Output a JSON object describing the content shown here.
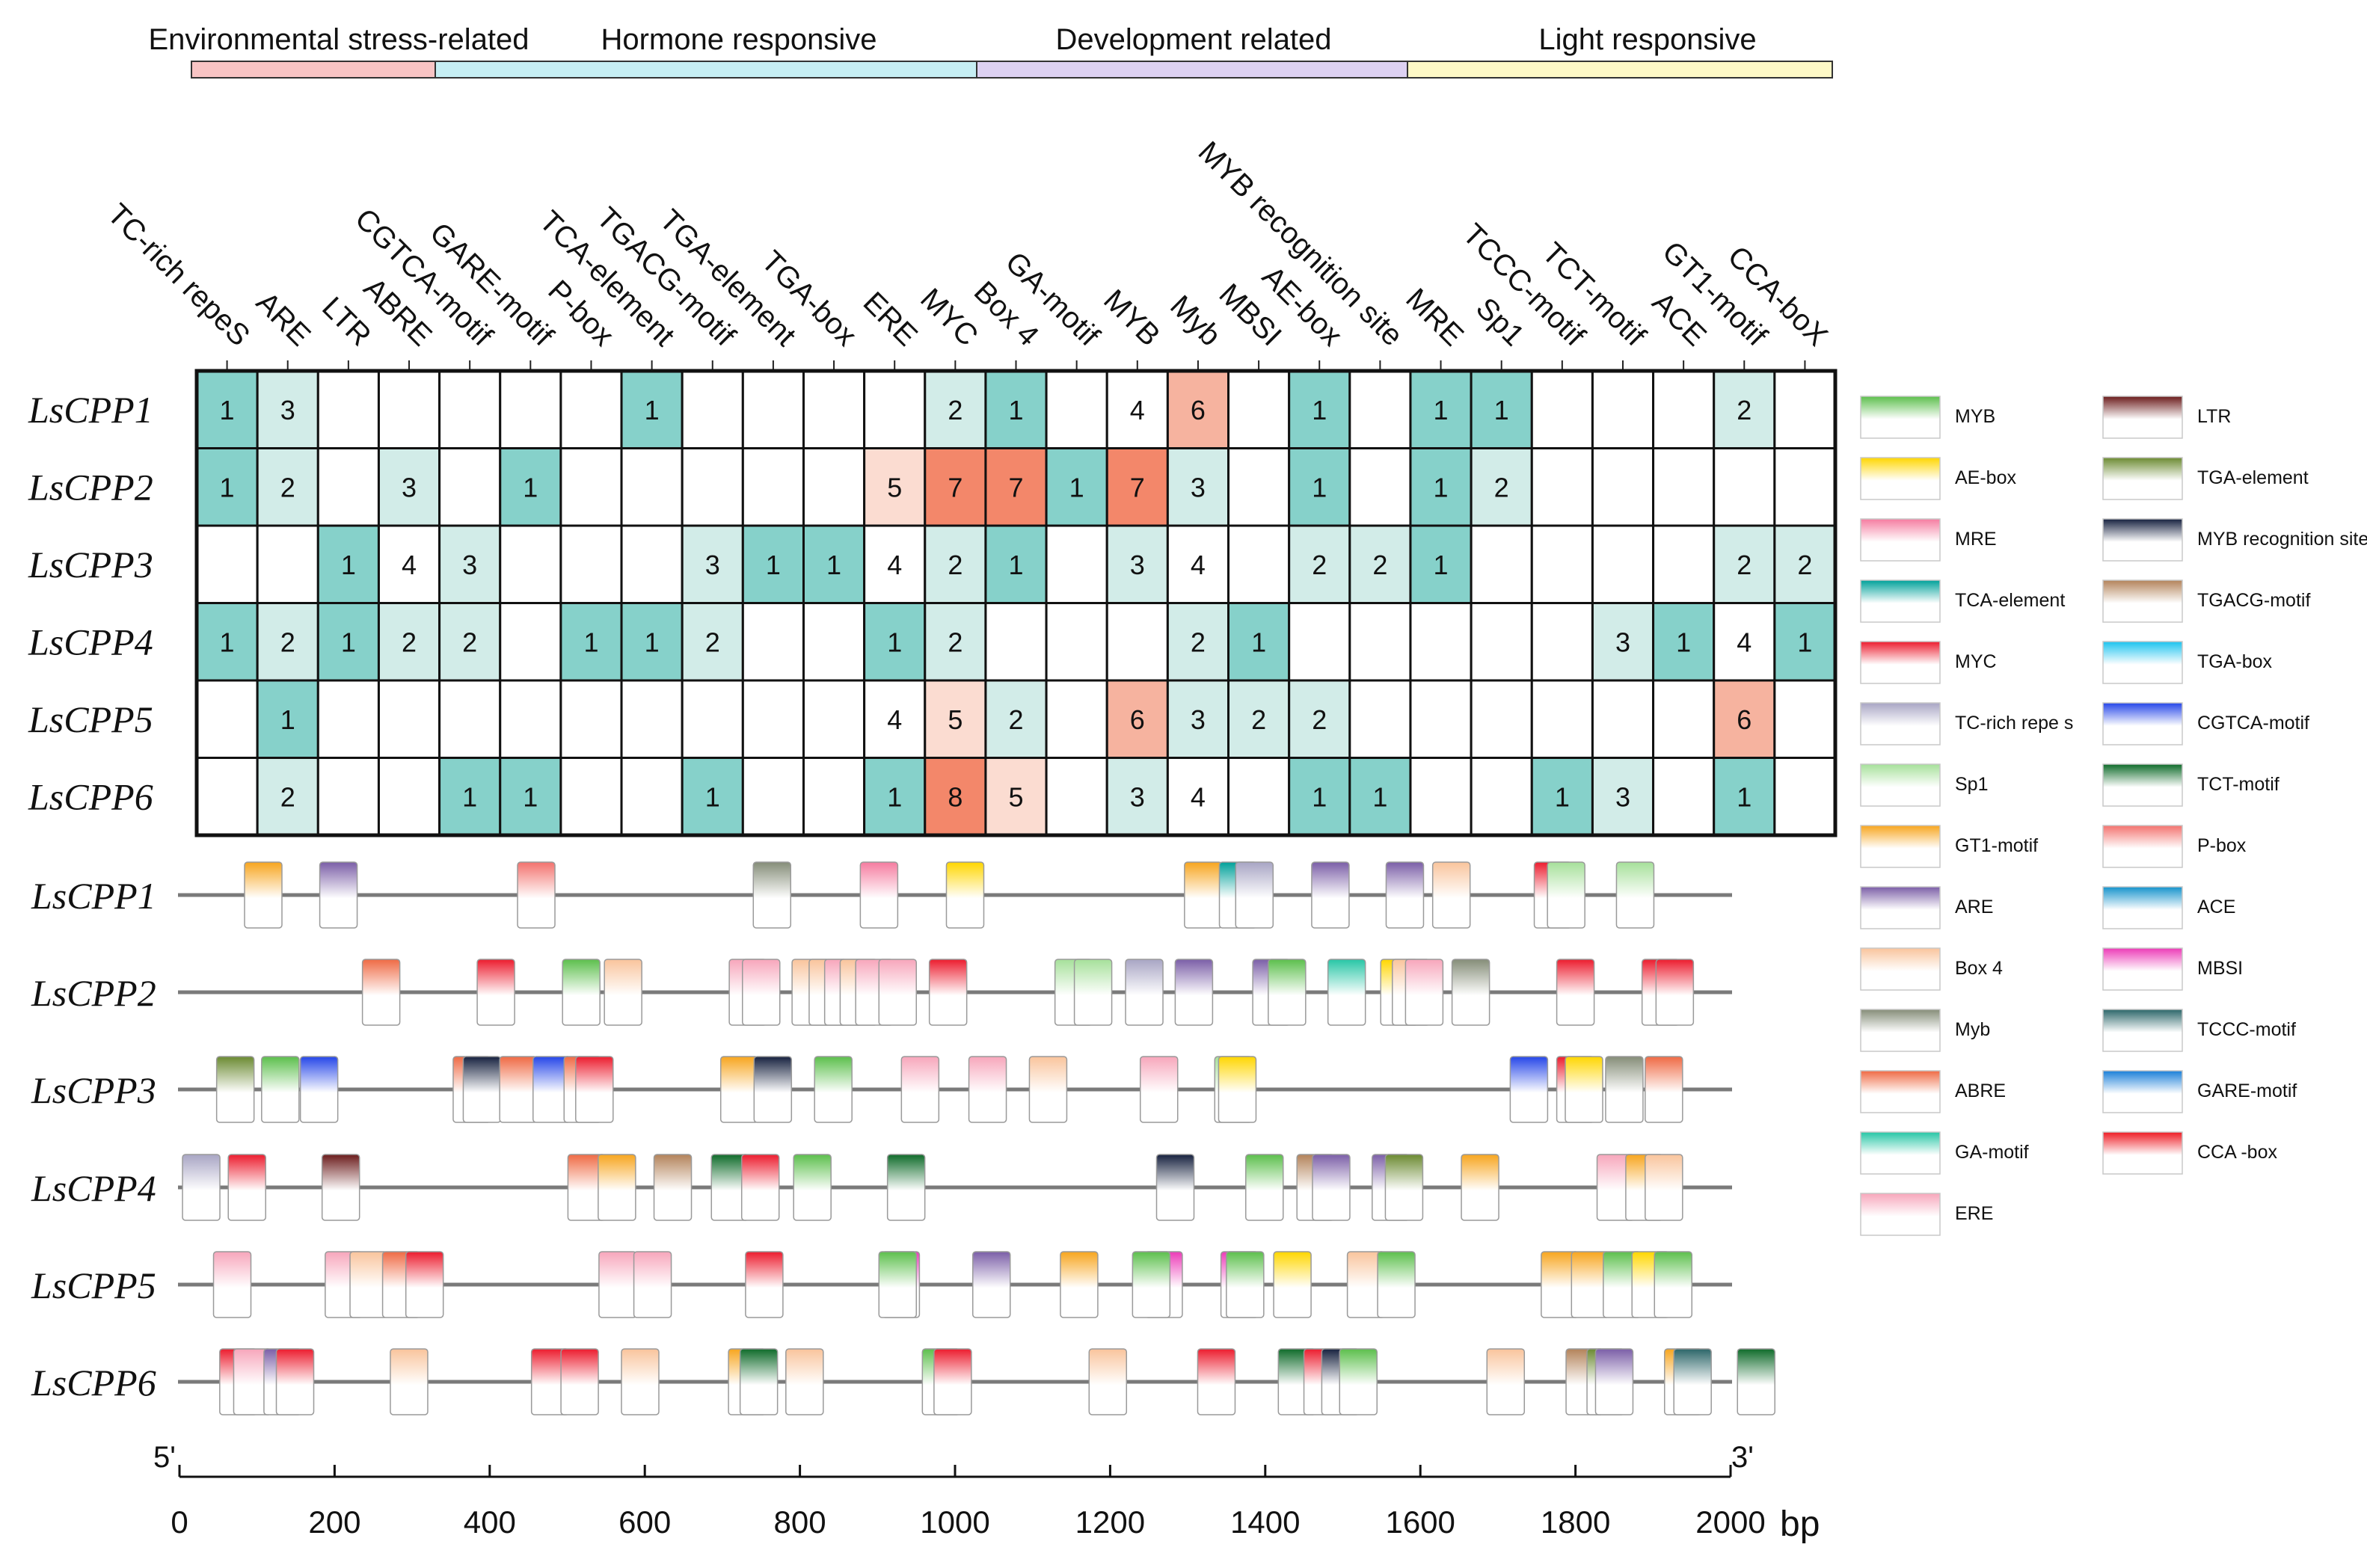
{
  "categories": [
    {
      "label": "Environmental stress-related",
      "color": "#f8c4c4"
    },
    {
      "label": "Hormone responsive",
      "color": "#c6eef3"
    },
    {
      "label": "Development related",
      "color": "#ddd1f2"
    },
    {
      "label": "Light responsive",
      "color": "#fdf8c6"
    }
  ],
  "heatmap": {
    "columns": [
      "TC-rich repeS",
      "ARE",
      "LTR",
      "ABRE",
      "CGTCA-motif",
      "GARE-motif",
      "P-box",
      "TCA-element",
      "TGACG-motif",
      "TGA-element",
      "TGA-box",
      "ERE",
      "MYC",
      "Box 4",
      "GA-motif",
      "MYB",
      "Myb",
      "MBSI",
      "AE-box",
      "MYB recognition site",
      "MRE",
      "Sp1",
      "TCCC-motif",
      "TCT-motif",
      "ACE",
      "GT1-motif",
      "CCA-boX"
    ],
    "rows": [
      {
        "name": "LsCPP1",
        "values": [
          1,
          3,
          null,
          null,
          null,
          null,
          null,
          1,
          null,
          null,
          null,
          null,
          2,
          1,
          null,
          4,
          6,
          null,
          1,
          null,
          1,
          1,
          null,
          null,
          null,
          2,
          null
        ]
      },
      {
        "name": "LsCPP2",
        "values": [
          1,
          2,
          null,
          3,
          null,
          1,
          null,
          null,
          null,
          null,
          null,
          5,
          7,
          7,
          1,
          7,
          3,
          null,
          1,
          null,
          1,
          2,
          null,
          null,
          null,
          null,
          null
        ]
      },
      {
        "name": "LsCPP3",
        "values": [
          null,
          null,
          1,
          4,
          3,
          null,
          null,
          null,
          3,
          1,
          1,
          4,
          2,
          1,
          null,
          3,
          4,
          null,
          2,
          2,
          1,
          null,
          null,
          null,
          null,
          2,
          2
        ]
      },
      {
        "name": "LsCPP4",
        "values": [
          1,
          2,
          1,
          2,
          2,
          null,
          1,
          1,
          2,
          null,
          null,
          1,
          2,
          null,
          null,
          null,
          2,
          1,
          null,
          null,
          null,
          null,
          null,
          3,
          1,
          4,
          1
        ]
      },
      {
        "name": "LsCPP5",
        "values": [
          null,
          1,
          null,
          null,
          null,
          null,
          null,
          null,
          null,
          null,
          null,
          4,
          5,
          2,
          null,
          6,
          3,
          2,
          2,
          null,
          null,
          null,
          null,
          null,
          null,
          6,
          null
        ]
      },
      {
        "name": "LsCPP6",
        "values": [
          null,
          2,
          null,
          null,
          1,
          1,
          null,
          null,
          1,
          null,
          null,
          1,
          8,
          5,
          null,
          3,
          4,
          null,
          1,
          1,
          null,
          null,
          1,
          3,
          null,
          1,
          null
        ]
      }
    ]
  },
  "legend": [
    {
      "label": "MYB",
      "color": "#5cbf4c"
    },
    {
      "label": "AE-box",
      "color": "#ffd600"
    },
    {
      "label": "MRE",
      "color": "#f57ca0"
    },
    {
      "label": "TCA-element",
      "color": "#00a19a"
    },
    {
      "label": "MYC",
      "color": "#ec1c2e"
    },
    {
      "label": "TC-rich repe s",
      "color": "#a8a5c4"
    },
    {
      "label": "Sp1",
      "color": "#a6e09a"
    },
    {
      "label": "GT1-motif",
      "color": "#f7a51e"
    },
    {
      "label": "ARE",
      "color": "#7b5ea7"
    },
    {
      "label": "Box 4",
      "color": "#f9c49c"
    },
    {
      "label": "Myb",
      "color": "#858d78"
    },
    {
      "label": "ABRE",
      "color": "#ef6a44"
    },
    {
      "label": "GA-motif",
      "color": "#27c6a6"
    },
    {
      "label": "ERE",
      "color": "#f7a6bb"
    },
    {
      "label": "LTR",
      "color": "#6b1c1c"
    },
    {
      "label": "TGA-element",
      "color": "#6b8a31"
    },
    {
      "label": "MYB recognition site",
      "color": "#16213f"
    },
    {
      "label": "TGACG-motif",
      "color": "#b3835a"
    },
    {
      "label": "TGA-box",
      "color": "#1cc3ef"
    },
    {
      "label": "CGTCA-motif",
      "color": "#2546e8"
    },
    {
      "label": "TCT-motif",
      "color": "#0f6b2a"
    },
    {
      "label": "P-box",
      "color": "#f3726e"
    },
    {
      "label": "ACE",
      "color": "#1593cc"
    },
    {
      "label": "MBSI",
      "color": "#ec3bb7"
    },
    {
      "label": "TCCC-motif",
      "color": "#2c6669"
    },
    {
      "label": "GARE-motif",
      "color": "#1a7fd8"
    },
    {
      "label": "CCA  -box",
      "color": "#ee1c24"
    }
  ],
  "promoter_map": {
    "length_bp": 2000,
    "five_prime": "5'",
    "three_prime": "3'",
    "unit": "bp",
    "ticks": [
      0,
      200,
      400,
      600,
      800,
      1000,
      1200,
      1400,
      1600,
      1800,
      2000
    ],
    "genes": [
      {
        "name": "LsCPP1",
        "elements": [
          [
            "GT1-motif",
            108
          ],
          [
            "ARE",
            205
          ],
          [
            "P-box",
            460
          ],
          [
            "Myb",
            764
          ],
          [
            "MRE",
            902
          ],
          [
            "AE-box",
            1013
          ],
          [
            "GT1-motif",
            1320
          ],
          [
            "TCA-element",
            1365
          ],
          [
            "TC-rich repe s",
            1386
          ],
          [
            "ARE",
            1484
          ],
          [
            "ARE",
            1580
          ],
          [
            "Box 4",
            1640
          ],
          [
            "MYC",
            1771
          ],
          [
            "Sp1",
            1788
          ],
          [
            "Sp1",
            1877
          ]
        ]
      },
      {
        "name": "LsCPP2",
        "elements": [
          [
            "ABRE",
            260
          ],
          [
            "MYC",
            408
          ],
          [
            "MYB",
            518
          ],
          [
            "Box 4",
            572
          ],
          [
            "ERE",
            733
          ],
          [
            "ERE",
            750
          ],
          [
            "Box 4",
            814
          ],
          [
            "Box 4",
            836
          ],
          [
            "ERE",
            856
          ],
          [
            "Box 4",
            876
          ],
          [
            "ERE",
            896
          ],
          [
            "ERE",
            926
          ],
          [
            "MYC",
            991
          ],
          [
            "Sp1",
            1153
          ],
          [
            "Sp1",
            1178
          ],
          [
            "TC-rich repe s",
            1244
          ],
          [
            "ARE",
            1308
          ],
          [
            "ARE",
            1408
          ],
          [
            "MYB",
            1428
          ],
          [
            "GA-motif",
            1505
          ],
          [
            "AE-box",
            1573
          ],
          [
            "Box 4",
            1588
          ],
          [
            "ERE",
            1605
          ],
          [
            "Myb",
            1665
          ],
          [
            "MYC",
            1800
          ],
          [
            "MYC",
            1910
          ],
          [
            "MYC",
            1928
          ]
        ]
      },
      {
        "name": "LsCPP3",
        "elements": [
          [
            "TGA-element",
            72
          ],
          [
            "MYB",
            130
          ],
          [
            "CGTCA-motif",
            180
          ],
          [
            "ABRE",
            377
          ],
          [
            "MYB recognition site",
            390
          ],
          [
            "ABRE",
            437
          ],
          [
            "CGTCA-motif",
            480
          ],
          [
            "ABRE",
            520
          ],
          [
            "MYC",
            535
          ],
          [
            "GT1-motif",
            722
          ],
          [
            "MYB recognition site",
            765
          ],
          [
            "MYB",
            843
          ],
          [
            "ERE",
            955
          ],
          [
            "ERE",
            1042
          ],
          [
            "Box 4",
            1120
          ],
          [
            "ERE",
            1263
          ],
          [
            "Sp1",
            1359
          ],
          [
            "AE-box",
            1364
          ],
          [
            "CGTCA-motif",
            1740
          ],
          [
            "MYC",
            1800
          ],
          [
            "AE-box",
            1811
          ],
          [
            "Myb",
            1863
          ],
          [
            "ABRE",
            1914
          ]
        ]
      },
      {
        "name": "LsCPP4",
        "elements": [
          [
            "TC-rich repe s",
            28
          ],
          [
            "MYC",
            87
          ],
          [
            "LTR",
            208
          ],
          [
            "ABRE",
            525
          ],
          [
            "GT1-motif",
            564
          ],
          [
            "TGACG-motif",
            636
          ],
          [
            "TCT-motif",
            710
          ],
          [
            "MYC",
            749
          ],
          [
            "MYB",
            816
          ],
          [
            "TCT-motif",
            937
          ],
          [
            "MYB recognition site",
            1284
          ],
          [
            "MYB",
            1399
          ],
          [
            "TGACG-motif",
            1465
          ],
          [
            "ARE",
            1485
          ],
          [
            "ARE",
            1562
          ],
          [
            "TGA-element",
            1579
          ],
          [
            "GT1-motif",
            1677
          ],
          [
            "ERE",
            1852
          ],
          [
            "GT1-motif",
            1889
          ],
          [
            "Box 4",
            1914
          ]
        ]
      },
      {
        "name": "LsCPP5",
        "elements": [
          [
            "ERE",
            68
          ],
          [
            "ERE",
            212
          ],
          [
            "Box 4",
            244
          ],
          [
            "ABRE",
            286
          ],
          [
            "MYC",
            316
          ],
          [
            "ERE",
            565
          ],
          [
            "ERE",
            610
          ],
          [
            "MYC",
            754
          ],
          [
            "MBSI",
            930
          ],
          [
            "MYB",
            926
          ],
          [
            "ARE",
            1047
          ],
          [
            "GT1-motif",
            1160
          ],
          [
            "MBSI",
            1269
          ],
          [
            "MYB",
            1253
          ],
          [
            "MBSI",
            1367
          ],
          [
            "MYB",
            1374
          ],
          [
            "AE-box",
            1435
          ],
          [
            "Box 4",
            1530
          ],
          [
            "MYB",
            1569
          ],
          [
            "GT1-motif",
            1780
          ],
          [
            "GT1-motif",
            1819
          ],
          [
            "MYB",
            1860
          ],
          [
            "AE-box",
            1897
          ],
          [
            "MYB",
            1926
          ]
        ]
      },
      {
        "name": "LsCPP6",
        "elements": [
          [
            "MYC",
            76
          ],
          [
            "ERE",
            94
          ],
          [
            "ARE",
            133
          ],
          [
            "MYC",
            149
          ],
          [
            "Box 4",
            296
          ],
          [
            "MYC",
            478
          ],
          [
            "MYC",
            516
          ],
          [
            "Box 4",
            594
          ],
          [
            "GT1-motif",
            732
          ],
          [
            "TCT-motif",
            747
          ],
          [
            "Box 4",
            806
          ],
          [
            "MYB",
            982
          ],
          [
            "MYC",
            997
          ],
          [
            "Box 4",
            1197
          ],
          [
            "MYC",
            1337
          ],
          [
            "TCT-motif",
            1441
          ],
          [
            "MYC",
            1474
          ],
          [
            "MYB recognition site",
            1497
          ],
          [
            "MYB",
            1520
          ],
          [
            "Box 4",
            1710
          ],
          [
            "TGACG-motif",
            1812
          ],
          [
            "TGA-element",
            1839
          ],
          [
            "ARE",
            1850
          ],
          [
            "GT1-motif",
            1939
          ],
          [
            "TCCC-motif",
            1951
          ],
          [
            "TCT-motif",
            2033
          ]
        ]
      }
    ]
  }
}
